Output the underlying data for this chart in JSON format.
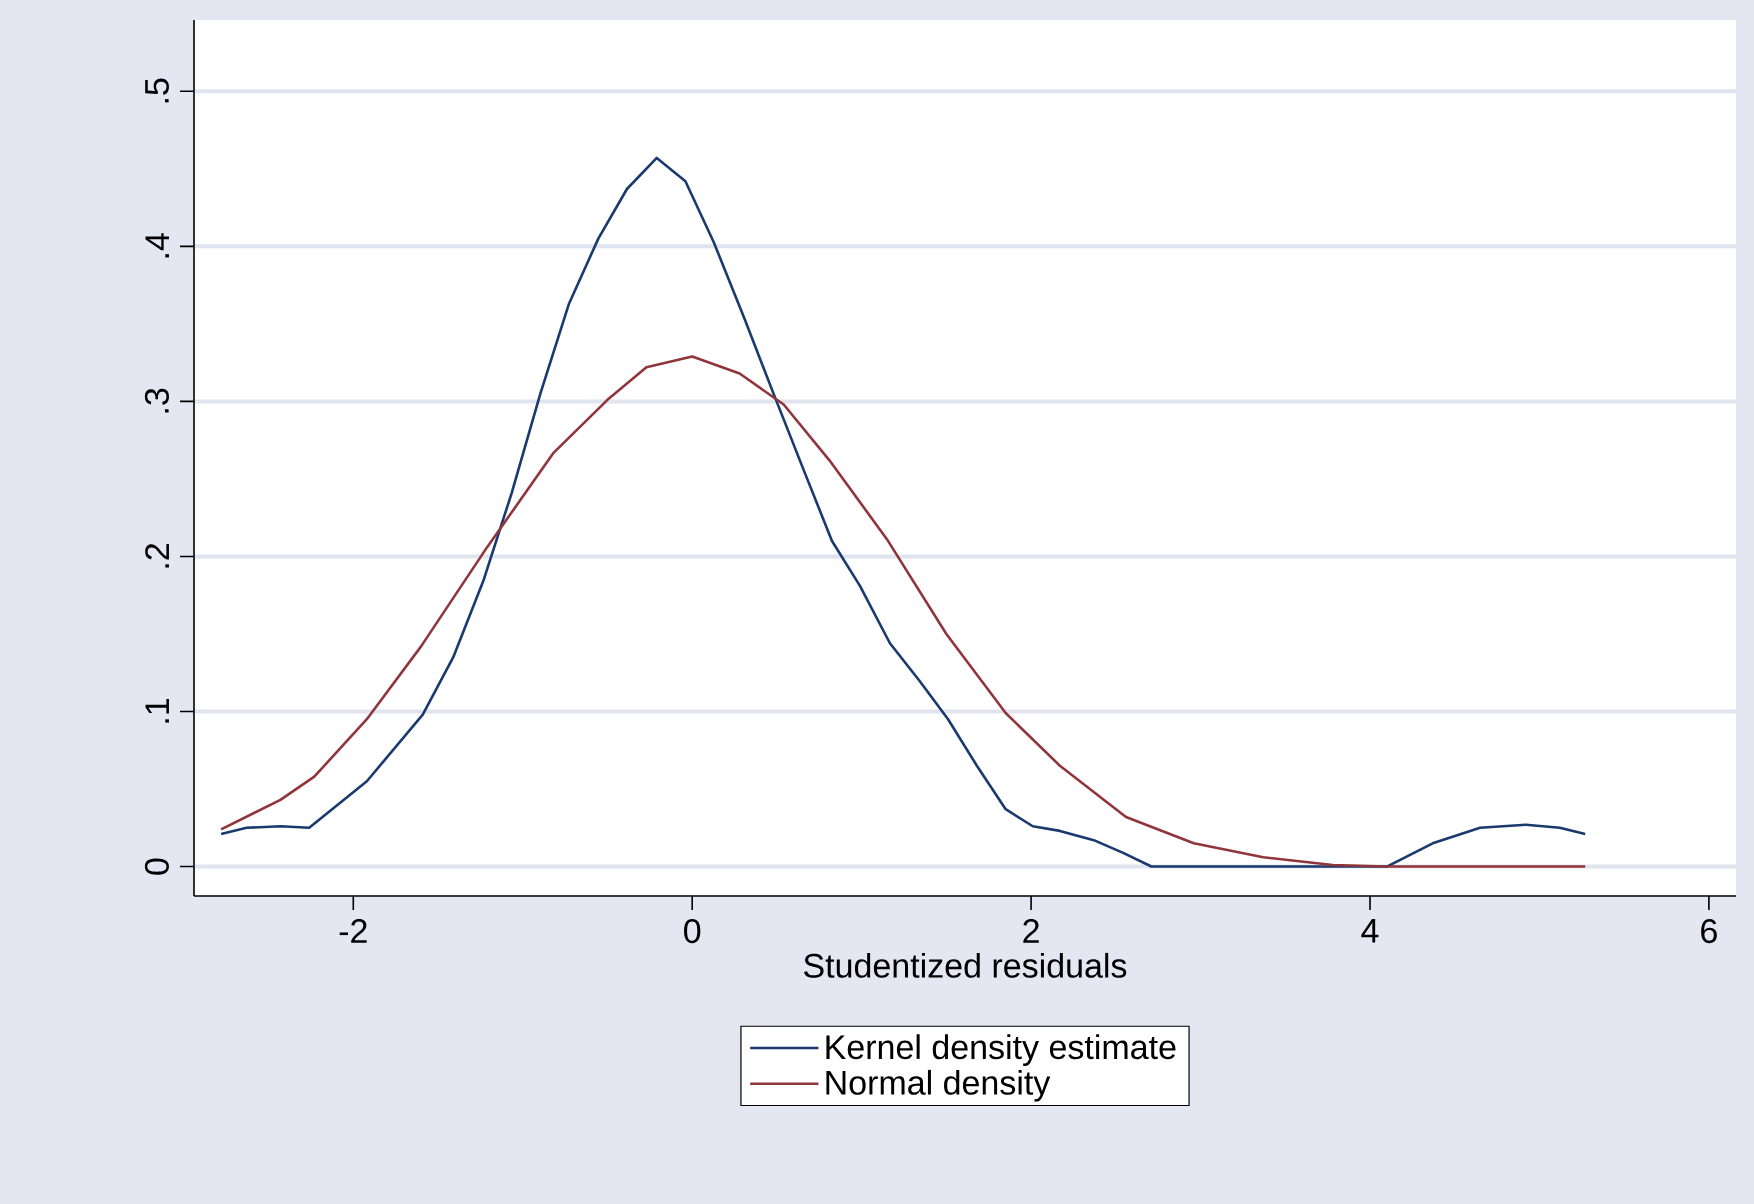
{
  "chart_data": {
    "type": "line",
    "xlabel": "Studentized residuals",
    "xlim": [
      -2.94,
      6.16
    ],
    "ylim": [
      -0.019,
      0.546
    ],
    "xticks": [
      -2,
      0,
      2,
      4,
      6
    ],
    "yticks": [
      0,
      {
        "value": 0.1,
        "label": ".1"
      },
      {
        "value": 0.2,
        "label": ".2"
      },
      {
        "value": 0.3,
        "label": ".3"
      },
      {
        "value": 0.4,
        "label": ".4"
      },
      {
        "value": 0.5,
        "label": ".5"
      }
    ],
    "grid": "y",
    "legend": "bottom",
    "series": [
      {
        "name": "Kernel density estimate",
        "color": "#1a3a6e",
        "x": [
          -2.78,
          -2.63,
          -2.43,
          -2.26,
          -1.92,
          -1.59,
          -1.41,
          -1.23,
          -1.065,
          -0.896,
          -0.727,
          -0.554,
          -0.385,
          -0.209,
          -0.04,
          0.126,
          0.31,
          0.48,
          0.657,
          0.825,
          0.99,
          1.167,
          1.34,
          1.51,
          1.68,
          1.85,
          2.01,
          2.17,
          2.37,
          2.54,
          2.71,
          4.1,
          4.37,
          4.65,
          4.92,
          5.12,
          5.27
        ],
        "values": [
          0.021,
          0.025,
          0.026,
          0.025,
          0.055,
          0.098,
          0.135,
          0.185,
          0.241,
          0.305,
          0.363,
          0.405,
          0.437,
          0.457,
          0.442,
          0.403,
          0.353,
          0.305,
          0.256,
          0.21,
          0.181,
          0.144,
          0.12,
          0.095,
          0.065,
          0.037,
          0.026,
          0.023,
          0.017,
          0.009,
          0.0,
          0.0,
          0.015,
          0.025,
          0.027,
          0.025,
          0.021
        ]
      },
      {
        "name": "Normal density",
        "color": "#90353b",
        "x": [
          -2.78,
          -2.43,
          -2.23,
          -1.92,
          -1.6,
          -1.21,
          -0.817,
          -0.5,
          -0.27,
          0.0,
          0.28,
          0.54,
          0.81,
          1.15,
          1.5,
          1.85,
          2.17,
          2.56,
          2.96,
          3.37,
          3.78,
          4.1,
          5.27
        ],
        "values": [
          0.024,
          0.043,
          0.058,
          0.095,
          0.142,
          0.206,
          0.267,
          0.301,
          0.322,
          0.329,
          0.318,
          0.298,
          0.262,
          0.211,
          0.15,
          0.099,
          0.065,
          0.032,
          0.015,
          0.006,
          0.001,
          0.0,
          0.0
        ]
      }
    ]
  }
}
